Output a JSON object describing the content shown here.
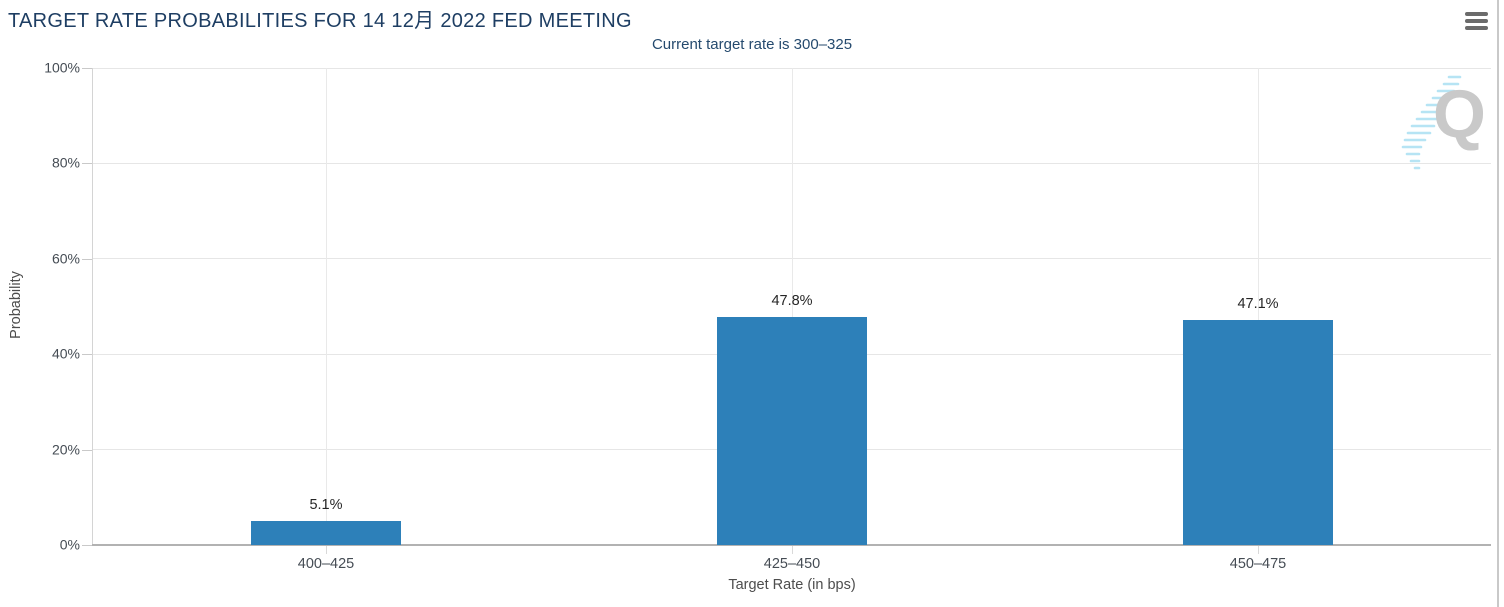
{
  "header": {
    "title": "TARGET RATE PROBABILITIES FOR 14 12月 2022 FED MEETING",
    "subtitle": "Current target rate is 300–325"
  },
  "menu": {
    "icon": "hamburger-menu-icon"
  },
  "chart_data": {
    "type": "bar",
    "title": "TARGET RATE PROBABILITIES FOR 14 12月 2022 FED MEETING",
    "subtitle": "Current target rate is 300–325",
    "categories": [
      "400–425",
      "425–450",
      "450–475"
    ],
    "values": [
      5.1,
      47.8,
      47.1
    ],
    "value_labels": [
      "5.1%",
      "47.8%",
      "47.1%"
    ],
    "xlabel": "Target Rate (in bps)",
    "ylabel": "Probability",
    "ylim": [
      0,
      100
    ],
    "ytick_labels": [
      "0%",
      "20%",
      "40%",
      "60%",
      "80%",
      "100%"
    ],
    "grid": true,
    "legend": "none",
    "bar_color": "#2d80b9"
  },
  "watermark": {
    "letter": "Q"
  },
  "colors": {
    "title": "#1e3e63",
    "subtitle": "#254a6e",
    "bar": "#2d80b9",
    "axis_text": "#454c54",
    "value_label": "#262626",
    "gridline": "#e6e6e6",
    "watermark_q": "#c9c9c9",
    "watermark_dashes": "#b6e4f4"
  }
}
